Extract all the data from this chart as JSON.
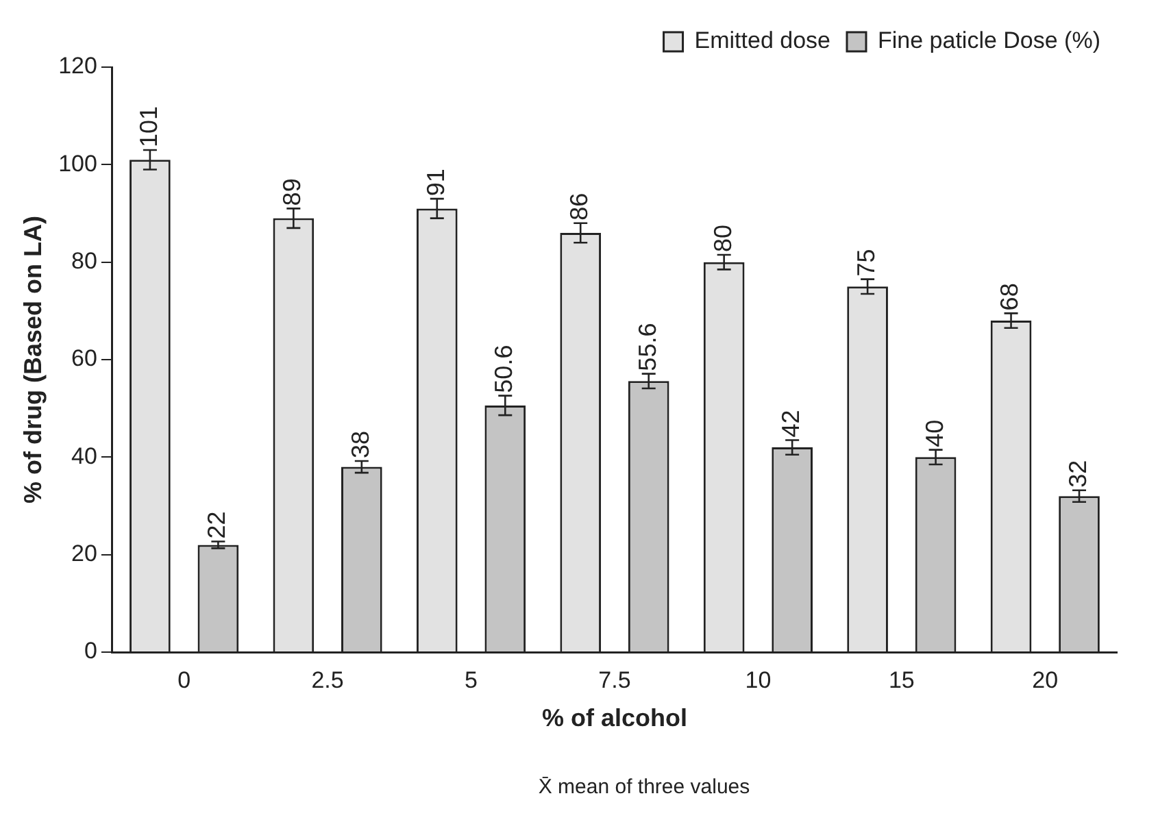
{
  "chart_data": {
    "type": "bar",
    "xlabel": "% of alcohol",
    "ylabel": "% of drug (Based on LA)",
    "categories": [
      "0",
      "2.5",
      "5",
      "7.5",
      "10",
      "15",
      "20"
    ],
    "series": [
      {
        "name": "Emitted dose",
        "color": "#e2e2e2",
        "values": [
          101,
          89,
          91,
          86,
          80,
          75,
          68
        ],
        "errors": [
          2,
          2,
          2,
          2,
          1.5,
          1.5,
          1.5
        ]
      },
      {
        "name": "Fine paticle Dose (%)",
        "color": "#c4c4c4",
        "values": [
          22,
          38,
          50.6,
          55.6,
          42,
          40,
          32
        ],
        "errors": [
          0.7,
          1.2,
          2,
          1.5,
          1.5,
          1.5,
          1.2
        ]
      }
    ],
    "ylim": [
      0,
      120
    ],
    "yticks": [
      0,
      20,
      40,
      60,
      80,
      100,
      120
    ],
    "grid": false,
    "legend": "top right",
    "data_labels": true,
    "annotations": [
      "X̄ mean of three values"
    ]
  }
}
